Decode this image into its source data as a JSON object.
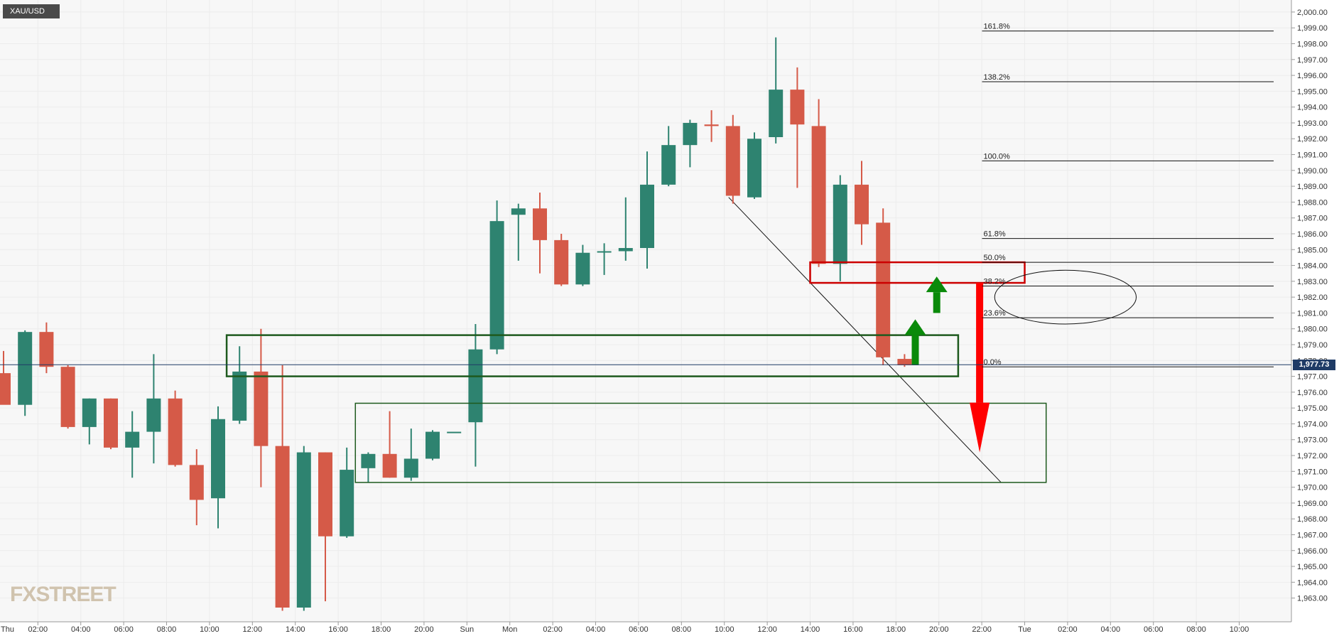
{
  "symbol": "XAU/USD",
  "logo": "FXSTREET",
  "current_price_label": "1,977.73",
  "colors": {
    "up": "#2e8370",
    "down": "#d55a48",
    "grid": "#ececec",
    "box_green": "#1e5a1e",
    "box_red": "#cc0000",
    "arrow_green": "#0a8a0a",
    "arrow_red": "#ff0000",
    "price_line": "#1f3b66"
  },
  "chart_data": {
    "type": "candlestick",
    "title": "",
    "xlabel": "",
    "ylabel": "",
    "ylim": [
      1962.4,
      2000.4
    ],
    "y_ticks": [
      "1,963.00",
      "1,964.00",
      "1,965.00",
      "1,966.00",
      "1,967.00",
      "1,968.00",
      "1,969.00",
      "1,970.00",
      "1,971.00",
      "1,972.00",
      "1,973.00",
      "1,974.00",
      "1,975.00",
      "1,976.00",
      "1,977.00",
      "1,978.00",
      "1,979.00",
      "1,980.00",
      "1,981.00",
      "1,982.00",
      "1,983.00",
      "1,984.00",
      "1,985.00",
      "1,986.00",
      "1,987.00",
      "1,988.00",
      "1,989.00",
      "1,990.00",
      "1,991.00",
      "1,992.00",
      "1,993.00",
      "1,994.00",
      "1,995.00",
      "1,996.00",
      "1,997.00",
      "1,998.00",
      "1,999.00",
      "2,000.00"
    ],
    "x_ticks": [
      {
        "label": "Thu",
        "slot": -0.4
      },
      {
        "label": "02:00",
        "slot": 1.6
      },
      {
        "label": "04:00",
        "slot": 3.6
      },
      {
        "label": "06:00",
        "slot": 5.6
      },
      {
        "label": "08:00",
        "slot": 7.6
      },
      {
        "label": "10:00",
        "slot": 9.6
      },
      {
        "label": "12:00",
        "slot": 11.6
      },
      {
        "label": "14:00",
        "slot": 13.6
      },
      {
        "label": "16:00",
        "slot": 15.6
      },
      {
        "label": "18:00",
        "slot": 17.6
      },
      {
        "label": "20:00",
        "slot": 19.6
      },
      {
        "label": "Sun",
        "slot": 21.6
      },
      {
        "label": "Mon",
        "slot": 23.6
      },
      {
        "label": "02:00",
        "slot": 25.6
      },
      {
        "label": "04:00",
        "slot": 27.6
      },
      {
        "label": "06:00",
        "slot": 29.6
      },
      {
        "label": "08:00",
        "slot": 31.6
      },
      {
        "label": "10:00",
        "slot": 33.6
      },
      {
        "label": "12:00",
        "slot": 35.6
      },
      {
        "label": "14:00",
        "slot": 37.6
      },
      {
        "label": "16:00",
        "slot": 39.6
      },
      {
        "label": "18:00",
        "slot": 41.6
      },
      {
        "label": "20:00",
        "slot": 43.6
      },
      {
        "label": "22:00",
        "slot": 45.6
      },
      {
        "label": "Tue",
        "slot": 47.6
      },
      {
        "label": "02:00",
        "slot": 49.6
      },
      {
        "label": "04:00",
        "slot": 51.6
      },
      {
        "label": "06:00",
        "slot": 53.6
      },
      {
        "label": "08:00",
        "slot": 55.6
      },
      {
        "label": "10:00",
        "slot": 57.6
      }
    ],
    "candles": [
      {
        "o": 1977.2,
        "h": 1978.6,
        "l": 1975.3,
        "c": 1975.2
      },
      {
        "o": 1975.2,
        "h": 1979.9,
        "l": 1974.5,
        "c": 1979.8
      },
      {
        "o": 1979.8,
        "h": 1980.4,
        "l": 1977.2,
        "c": 1977.6
      },
      {
        "o": 1977.6,
        "h": 1977.7,
        "l": 1973.7,
        "c": 1973.8
      },
      {
        "o": 1973.8,
        "h": 1975.6,
        "l": 1972.7,
        "c": 1975.6
      },
      {
        "o": 1975.6,
        "h": 1975.6,
        "l": 1972.4,
        "c": 1972.5
      },
      {
        "o": 1972.5,
        "h": 1974.8,
        "l": 1970.6,
        "c": 1973.5
      },
      {
        "o": 1973.5,
        "h": 1978.4,
        "l": 1971.5,
        "c": 1975.6
      },
      {
        "o": 1975.6,
        "h": 1976.1,
        "l": 1971.3,
        "c": 1971.4
      },
      {
        "o": 1971.4,
        "h": 1972.4,
        "l": 1967.6,
        "c": 1969.2
      },
      {
        "o": 1969.3,
        "h": 1975.1,
        "l": 1967.4,
        "c": 1974.3
      },
      {
        "o": 1974.2,
        "h": 1978.9,
        "l": 1974.0,
        "c": 1977.3
      },
      {
        "o": 1977.3,
        "h": 1980.0,
        "l": 1970.0,
        "c": 1972.6
      },
      {
        "o": 1972.6,
        "h": 1977.7,
        "l": 1962.2,
        "c": 1962.4
      },
      {
        "o": 1962.4,
        "h": 1972.6,
        "l": 1962.2,
        "c": 1972.2
      },
      {
        "o": 1972.2,
        "h": 1972.2,
        "l": 1962.8,
        "c": 1966.9
      },
      {
        "o": 1966.9,
        "h": 1972.5,
        "l": 1966.8,
        "c": 1971.1
      },
      {
        "o": 1971.2,
        "h": 1972.2,
        "l": 1970.3,
        "c": 1972.1
      },
      {
        "o": 1972.1,
        "h": 1974.8,
        "l": 1970.6,
        "c": 1970.6
      },
      {
        "o": 1970.6,
        "h": 1973.7,
        "l": 1970.4,
        "c": 1971.8
      },
      {
        "o": 1971.8,
        "h": 1973.6,
        "l": 1971.7,
        "c": 1973.5
      },
      {
        "o": 1973.5,
        "h": 1973.5,
        "l": 1973.5,
        "c": 1973.5
      },
      {
        "o": 1974.1,
        "h": 1980.3,
        "l": 1971.3,
        "c": 1978.7
      },
      {
        "o": 1978.7,
        "h": 1988.1,
        "l": 1978.4,
        "c": 1986.8
      },
      {
        "o": 1987.2,
        "h": 1987.9,
        "l": 1984.3,
        "c": 1987.6
      },
      {
        "o": 1987.6,
        "h": 1988.6,
        "l": 1983.5,
        "c": 1985.6
      },
      {
        "o": 1985.6,
        "h": 1986.0,
        "l": 1982.7,
        "c": 1982.8
      },
      {
        "o": 1982.8,
        "h": 1985.3,
        "l": 1982.7,
        "c": 1984.8
      },
      {
        "o": 1984.9,
        "h": 1985.4,
        "l": 1983.4,
        "c": 1984.9
      },
      {
        "o": 1984.9,
        "h": 1988.3,
        "l": 1984.3,
        "c": 1985.1
      },
      {
        "o": 1985.1,
        "h": 1991.2,
        "l": 1983.8,
        "c": 1989.1
      },
      {
        "o": 1989.1,
        "h": 1992.8,
        "l": 1989.0,
        "c": 1991.6
      },
      {
        "o": 1991.6,
        "h": 1993.2,
        "l": 1990.2,
        "c": 1993.0
      },
      {
        "o": 1992.9,
        "h": 1993.8,
        "l": 1991.8,
        "c": 1992.8
      },
      {
        "o": 1992.8,
        "h": 1993.5,
        "l": 1987.9,
        "c": 1988.4
      },
      {
        "o": 1988.3,
        "h": 1992.4,
        "l": 1988.2,
        "c": 1992.0
      },
      {
        "o": 1992.1,
        "h": 1998.4,
        "l": 1991.7,
        "c": 1995.1
      },
      {
        "o": 1995.1,
        "h": 1996.5,
        "l": 1988.9,
        "c": 1992.9
      },
      {
        "o": 1992.8,
        "h": 1994.5,
        "l": 1983.9,
        "c": 1984.1
      },
      {
        "o": 1984.1,
        "h": 1989.7,
        "l": 1983.0,
        "c": 1989.1
      },
      {
        "o": 1989.1,
        "h": 1990.6,
        "l": 1985.3,
        "c": 1986.6
      },
      {
        "o": 1986.7,
        "h": 1987.6,
        "l": 1977.7,
        "c": 1978.2
      },
      {
        "o": 1978.1,
        "h": 1978.4,
        "l": 1977.6,
        "c": 1977.7
      }
    ],
    "fibonacci": [
      {
        "label": "161.8%",
        "price": 1998.8,
        "slot_start": 47.6
      },
      {
        "label": "138.2%",
        "price": 1995.6,
        "slot_start": 47.6
      },
      {
        "label": "100.0%",
        "price": 1990.6,
        "slot_start": 47.6
      },
      {
        "label": "61.8%",
        "price": 1985.7,
        "slot_start": 47.6
      },
      {
        "label": "50.0%",
        "price": 1984.2,
        "slot_start": 47.6
      },
      {
        "label": "38.2%",
        "price": 1982.7,
        "slot_start": 47.6
      },
      {
        "label": "23.6%",
        "price": 1980.7,
        "slot_start": 47.6
      },
      {
        "label": "0.0%",
        "price": 1977.6,
        "slot_start": 47.6
      }
    ],
    "current_price": 1977.73,
    "trendline": {
      "from": {
        "slot": 33.8,
        "price": 1988.3
      },
      "to": {
        "slot": 46.5,
        "price": 1970.3
      }
    },
    "boxes": [
      {
        "kind": "green",
        "slot0": 10.4,
        "slot1": 44.5,
        "top": 1979.6,
        "bottom": 1977.0
      },
      {
        "kind": "green",
        "slot0": 16.4,
        "slot1": 48.6,
        "top": 1975.3,
        "bottom": 1970.3
      },
      {
        "kind": "red",
        "slot0": 37.6,
        "slot1": 47.6,
        "top": 1984.2,
        "bottom": 1982.9
      }
    ],
    "ellipse": {
      "slot": 49.5,
      "price": 1982.0,
      "r_slots": 3.3,
      "r_price": 1.7
    },
    "arrows": [
      {
        "kind": "up",
        "slot": 42.5,
        "from": 1977.7,
        "to": 1980.6
      },
      {
        "kind": "up",
        "slot": 43.5,
        "from": 1981.0,
        "to": 1983.3
      },
      {
        "kind": "down",
        "slot": 45.5,
        "from": 1982.9,
        "to": 1972.2
      }
    ],
    "grid": true
  }
}
